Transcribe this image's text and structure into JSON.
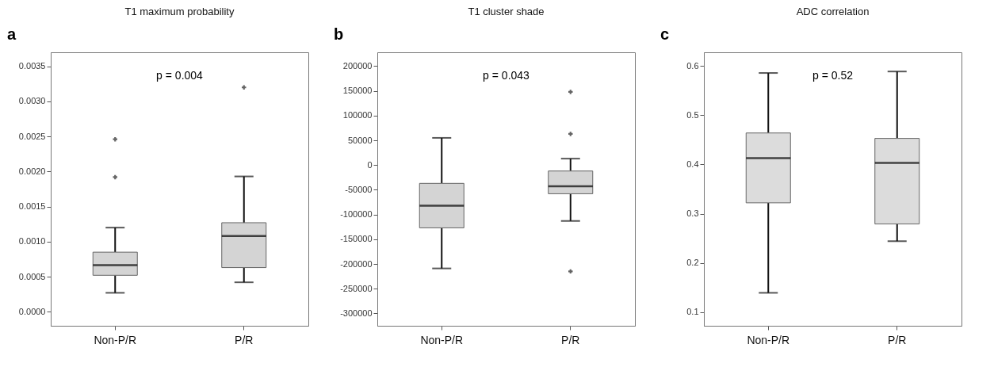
{
  "chart_data": [
    {
      "type": "box",
      "title": "T1 maximum probability",
      "annotations": [
        "a",
        "p = 0.004"
      ],
      "categories": [
        "Non-P/R",
        "P/R"
      ],
      "marker": "star",
      "ylim": [
        -0.0002,
        0.0037
      ],
      "yticks": [
        {
          "value": 0,
          "label": "0.0000"
        },
        {
          "value": 0.0005,
          "label": "0.0005"
        },
        {
          "value": 0.001,
          "label": "0.0010"
        },
        {
          "value": 0.0015,
          "label": "0.0015"
        },
        {
          "value": 0.002,
          "label": "0.0020"
        },
        {
          "value": 0.0025,
          "label": "0.0025"
        },
        {
          "value": 0.003,
          "label": "0.0030"
        },
        {
          "value": 0.0035,
          "label": "0.0035"
        }
      ],
      "series": [
        {
          "color": "#d4d4d4",
          "boxes": [
            {
              "low": 0.00027,
              "q1": 0.00052,
              "median": 0.000665,
              "q3": 0.00085,
              "high": 0.0012,
              "outliers": [
                0.00246,
                0.00192
              ]
            },
            {
              "low": 0.00042,
              "q1": 0.00063,
              "median": 0.00108,
              "q3": 0.00127,
              "high": 0.00193,
              "outliers": [
                0.0032
              ]
            }
          ]
        }
      ]
    },
    {
      "type": "box",
      "title": "T1 cluster shade",
      "annotations": [
        "b",
        "p = 0.043"
      ],
      "categories": [
        "Non-P/R",
        "P/R"
      ],
      "marker": "star",
      "ylim": [
        -325000,
        228000
      ],
      "yticks": [
        -300000,
        -250000,
        -200000,
        -150000,
        -100000,
        -50000,
        0,
        50000,
        100000,
        150000,
        200000
      ],
      "series": [
        {
          "color": "#d4d4d4",
          "boxes": [
            {
              "low": -209000,
              "q1": -127000,
              "median": -82000,
              "q3": -37000,
              "high": 55000
            },
            {
              "low": -113000,
              "q1": -58000,
              "median": -43000,
              "q3": -12000,
              "high": 13000,
              "outliers": [
                148000,
                63000,
                -215000
              ]
            }
          ]
        }
      ]
    },
    {
      "type": "box",
      "title": "ADC correlation",
      "annotations": [
        "c",
        "p = 0.52"
      ],
      "categories": [
        "Non-P/R",
        "P/R"
      ],
      "ylim": [
        0.072,
        0.628
      ],
      "yticks": [
        0.1,
        0.2,
        0.3,
        0.4,
        0.5,
        0.6
      ],
      "series": [
        {
          "color": "#dcdcdc",
          "boxes": [
            {
              "low": 0.139,
              "q1": 0.322,
              "median": 0.413,
              "q3": 0.464,
              "high": 0.586
            },
            {
              "low": 0.244,
              "q1": 0.279,
              "median": 0.403,
              "q3": 0.453,
              "high": 0.589
            }
          ]
        }
      ]
    }
  ]
}
